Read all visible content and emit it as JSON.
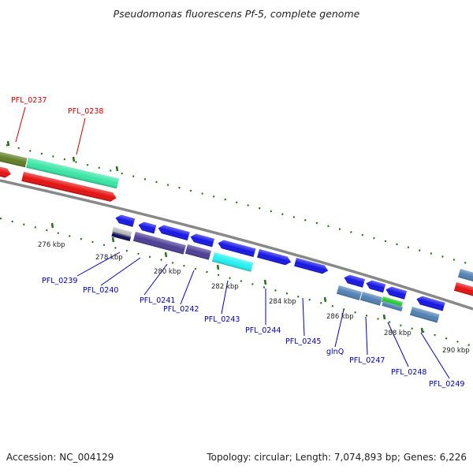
{
  "header": {
    "title": "Pseudomonas fluorescens Pf-5, complete genome"
  },
  "footer": {
    "accession": "Accession: NC_004129",
    "topology": "Topology: circular; Length: 7,074,893 bp; Genes: 6,226"
  },
  "colors": {
    "outer_gene_red": "#cc0000",
    "inner_gene_blue": "#0000aa",
    "backbone": "#888888",
    "tick_green": "#2a6e1e",
    "cds_blue": "#1414e6",
    "cds_purple": "#4b3c96",
    "cds_cyan": "#23f0f0",
    "cds_steelblue": "#4f80b4",
    "cds_red": "#e60f0f",
    "cds_teal": "#37e6a5",
    "cds_olive": "#5f7d23",
    "cds_green": "#23c82d",
    "cds_grey": "#bbbbbb",
    "cds_navy": "#0a0a55"
  },
  "scale_labels": [
    "276 kbp",
    "278 kbp",
    "280 kbp",
    "282 kbp",
    "284 kbp",
    "286 kbp",
    "288 kbp",
    "290 kbp"
  ],
  "outer_genes": [
    "PFL_0237",
    "PFL_0238"
  ],
  "inner_genes": [
    "PFL_0239",
    "PFL_0240",
    "PFL_0241",
    "PFL_0242",
    "PFL_0243",
    "PFL_0244",
    "PFL_0245",
    "glnQ",
    "PFL_0247",
    "PFL_0248",
    "PFL_0249"
  ]
}
